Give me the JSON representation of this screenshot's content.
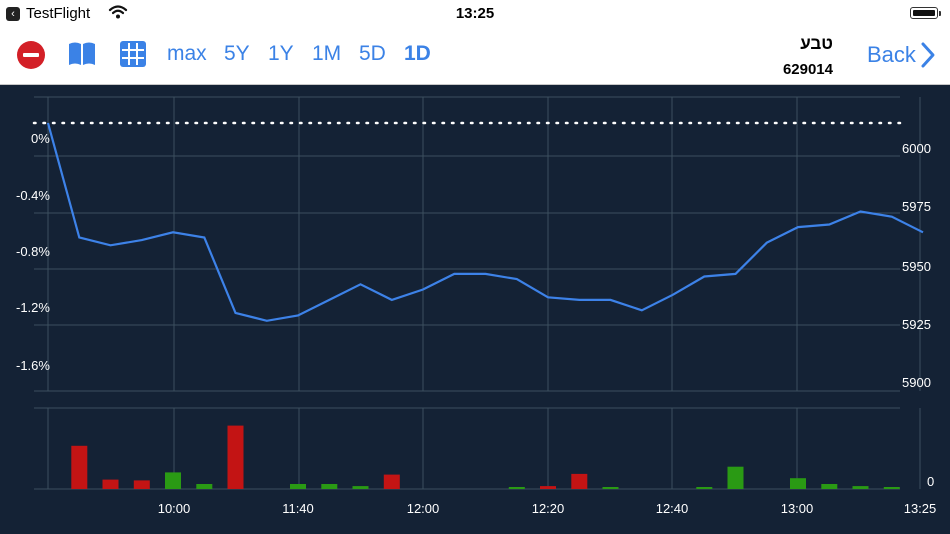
{
  "status_bar": {
    "back_app": "TestFlight",
    "time": "13:25"
  },
  "toolbar": {
    "ranges": [
      "max",
      "5Y",
      "1Y",
      "1M",
      "5D",
      "1D"
    ],
    "active_range": "1D",
    "stock_name": "טבע",
    "stock_id": "629014",
    "back_label": "Back",
    "icons": [
      "remove-icon",
      "book-icon",
      "grid-icon",
      "chevron-right-icon"
    ]
  },
  "colors": {
    "accent": "#3b82e6",
    "chart_bg": "#142235",
    "price_line": "#3d82e8",
    "volume_up": "#2a9a14",
    "volume_down": "#c31414",
    "remove_button": "#d32027"
  },
  "chart_data": {
    "type": "line",
    "time_labels": [
      "10:00",
      "11:40",
      "12:00",
      "12:20",
      "12:40",
      "13:00",
      "13:25"
    ],
    "left_axis_labels": [
      "0%",
      "-0.4%",
      "-0.8%",
      "-1.2%",
      "-1.6%"
    ],
    "right_axis_labels": [
      "6000",
      "5975",
      "5950",
      "5925",
      "5900"
    ],
    "volume_axis_label": "0",
    "ylim_price": [
      5897,
      6010
    ],
    "reference_price": 6000,
    "price_series": [
      6000,
      5956,
      5953,
      5955,
      5958,
      5956,
      5927,
      5924,
      5926,
      5932,
      5938,
      5932,
      5936,
      5942,
      5942,
      5940,
      5933,
      5932,
      5932,
      5928,
      5934,
      5941,
      5942,
      5954,
      5960,
      5961,
      5966,
      5964,
      5958
    ],
    "volume_bars": [
      {
        "slot": 1,
        "value": 0.6,
        "dir": "down"
      },
      {
        "slot": 2,
        "value": 0.13,
        "dir": "down"
      },
      {
        "slot": 3,
        "value": 0.12,
        "dir": "down"
      },
      {
        "slot": 4,
        "value": 0.23,
        "dir": "up"
      },
      {
        "slot": 5,
        "value": 0.07,
        "dir": "up"
      },
      {
        "slot": 6,
        "value": 0.88,
        "dir": "down"
      },
      {
        "slot": 8,
        "value": 0.07,
        "dir": "up"
      },
      {
        "slot": 9,
        "value": 0.07,
        "dir": "up"
      },
      {
        "slot": 10,
        "value": 0.04,
        "dir": "up"
      },
      {
        "slot": 11,
        "value": 0.2,
        "dir": "down"
      },
      {
        "slot": 15,
        "value": 0.02,
        "dir": "up"
      },
      {
        "slot": 16,
        "value": 0.04,
        "dir": "down"
      },
      {
        "slot": 17,
        "value": 0.21,
        "dir": "down"
      },
      {
        "slot": 18,
        "value": 0.02,
        "dir": "up"
      },
      {
        "slot": 21,
        "value": 0.02,
        "dir": "up"
      },
      {
        "slot": 22,
        "value": 0.31,
        "dir": "up"
      },
      {
        "slot": 24,
        "value": 0.15,
        "dir": "up"
      },
      {
        "slot": 25,
        "value": 0.07,
        "dir": "up"
      },
      {
        "slot": 26,
        "value": 0.04,
        "dir": "up"
      },
      {
        "slot": 27,
        "value": 0.02,
        "dir": "up"
      }
    ]
  }
}
